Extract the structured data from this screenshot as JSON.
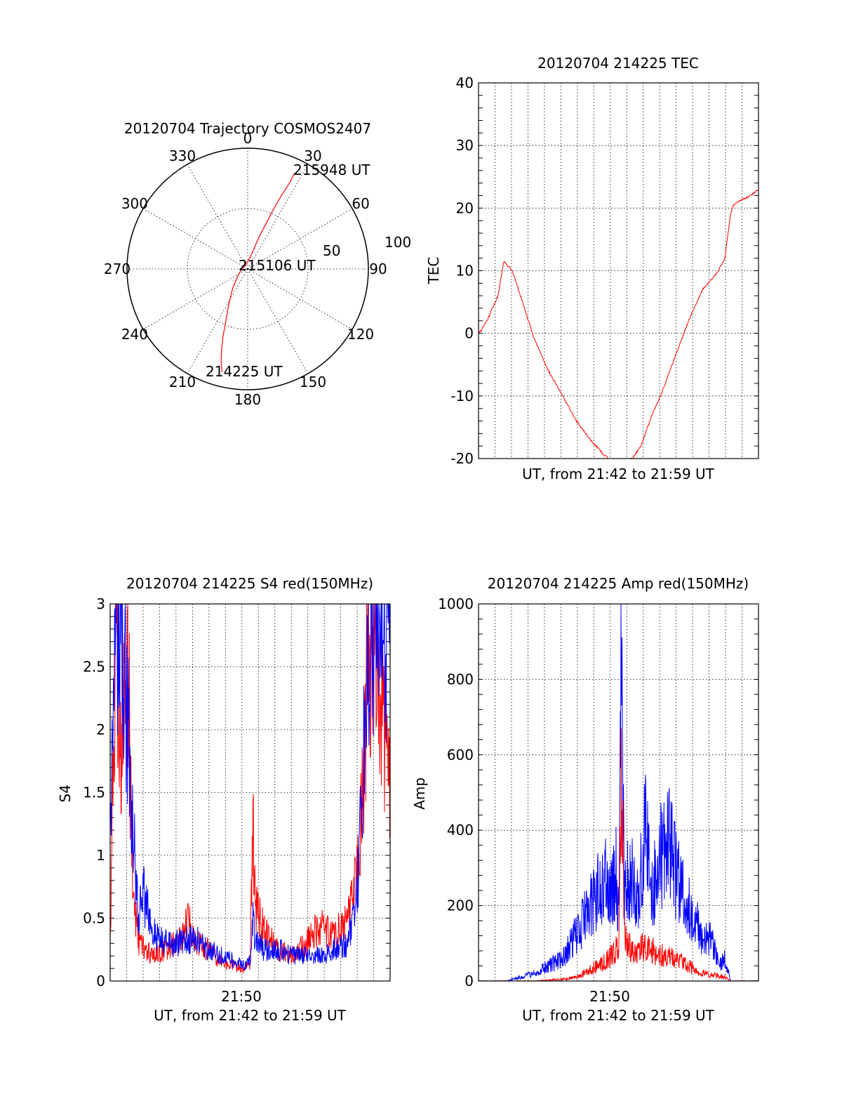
{
  "colors": {
    "red": "#ff0000",
    "blue": "#0000ff",
    "axis": "#000000",
    "background": "#ffffff"
  },
  "chart_data": [
    {
      "id": "trajectory",
      "type": "scatter",
      "subtype": "polar",
      "title": "20120704 Trajectory COSMOS2407",
      "azimuth_labels": [
        "0",
        "30",
        "60",
        "90",
        "120",
        "150",
        "180",
        "210",
        "240",
        "270",
        "300",
        "330"
      ],
      "radial_labels": [
        "50",
        "100"
      ],
      "radial_range": [
        0,
        100
      ],
      "grid": true,
      "annotations": [
        "215948 UT",
        "215106 UT",
        "214225 UT"
      ],
      "series": [
        {
          "color": "#ff0000",
          "points": [
            {
              "az": 194,
              "r": 88
            },
            {
              "az": 196,
              "r": 80
            },
            {
              "az": 198,
              "r": 70
            },
            {
              "az": 200,
              "r": 60
            },
            {
              "az": 202,
              "r": 50
            },
            {
              "az": 205,
              "r": 40
            },
            {
              "az": 210,
              "r": 30
            },
            {
              "az": 218,
              "r": 20
            },
            {
              "az": 235,
              "r": 10
            },
            {
              "az": 270,
              "r": 5
            },
            {
              "az": 340,
              "r": 4
            },
            {
              "az": 12,
              "r": 10
            },
            {
              "az": 18,
              "r": 20
            },
            {
              "az": 20,
              "r": 30
            },
            {
              "az": 22,
              "r": 40
            },
            {
              "az": 23,
              "r": 50
            },
            {
              "az": 24,
              "r": 60
            },
            {
              "az": 25,
              "r": 70
            },
            {
              "az": 26,
              "r": 80
            },
            {
              "az": 26,
              "r": 88
            }
          ]
        }
      ]
    },
    {
      "id": "tec",
      "type": "line",
      "title": "20120704 214225 TEC",
      "xlabel": "UT, from 21:42 to 21:59 UT",
      "ylabel": "TEC",
      "ylim": [
        -20,
        40
      ],
      "yticks": [
        "-20",
        "-10",
        "0",
        "10",
        "20",
        "30",
        "40"
      ],
      "xtick_labels": [],
      "grid": true,
      "series": [
        {
          "color": "#ff0000",
          "x": [
            0,
            0.01,
            0.03,
            0.05,
            0.07,
            0.09,
            0.12,
            0.15,
            0.2,
            0.25,
            0.3,
            0.35,
            0.4,
            0.45,
            0.48,
            0.5,
            0.52,
            0.55,
            0.58,
            0.62,
            0.65,
            0.7,
            0.75,
            0.8,
            0.85,
            0.88,
            0.9,
            0.91,
            0.93,
            0.95,
            0.97,
            1.0
          ],
          "y": [
            0,
            0.5,
            2,
            4,
            6,
            11.5,
            10,
            6,
            -1,
            -6,
            -10,
            -14,
            -17,
            -19.5,
            -20.5,
            -20.8,
            -20.5,
            -20,
            -18,
            -13,
            -10,
            -4,
            2,
            7,
            9.5,
            12,
            19,
            20.5,
            21,
            21.5,
            22,
            23
          ]
        }
      ]
    },
    {
      "id": "s4",
      "type": "line",
      "title": "20120704 214225 S4 red(150MHz)",
      "xlabel": "UT, from 21:42 to 21:59 UT",
      "ylabel": "S4",
      "ylim": [
        0,
        3
      ],
      "yticks": [
        "0",
        "0.5",
        "1",
        "1.5",
        "2",
        "2.5",
        "3"
      ],
      "xtick_labels": [
        "21:50"
      ],
      "grid": true,
      "series": [
        {
          "color": "#ff0000",
          "x": [
            0,
            0.02,
            0.04,
            0.06,
            0.08,
            0.1,
            0.15,
            0.2,
            0.25,
            0.28,
            0.3,
            0.35,
            0.4,
            0.45,
            0.48,
            0.5,
            0.51,
            0.52,
            0.55,
            0.6,
            0.65,
            0.7,
            0.75,
            0.8,
            0.85,
            0.88,
            0.9,
            0.92,
            0.95,
            0.98,
            1.0
          ],
          "y": [
            0.3,
            2.9,
            1.5,
            3,
            0.8,
            0.3,
            0.2,
            0.25,
            0.35,
            0.5,
            0.3,
            0.25,
            0.15,
            0.12,
            0.1,
            0.15,
            1.2,
            0.6,
            0.4,
            0.25,
            0.2,
            0.3,
            0.45,
            0.35,
            0.5,
            0.8,
            1.4,
            2.5,
            2.9,
            2.0,
            1.5
          ]
        },
        {
          "color": "#0000ff",
          "x": [
            0,
            0.02,
            0.05,
            0.08,
            0.1,
            0.12,
            0.15,
            0.2,
            0.25,
            0.3,
            0.35,
            0.4,
            0.45,
            0.48,
            0.5,
            0.51,
            0.52,
            0.55,
            0.6,
            0.65,
            0.7,
            0.75,
            0.8,
            0.85,
            0.87,
            0.89,
            0.92,
            0.95,
            0.98,
            1.0
          ],
          "y": [
            1.0,
            3,
            2.5,
            1.3,
            0.5,
            0.7,
            0.4,
            0.3,
            0.3,
            0.35,
            0.25,
            0.2,
            0.15,
            0.12,
            0.15,
            0.5,
            0.3,
            0.25,
            0.25,
            0.2,
            0.2,
            0.2,
            0.25,
            0.3,
            0.5,
            1.0,
            2.5,
            3,
            2.8,
            3
          ]
        }
      ]
    },
    {
      "id": "amp",
      "type": "line",
      "title": "20120704 214225 Amp red(150MHz)",
      "xlabel": "UT, from 21:42 to 21:59 UT",
      "ylabel": "Amp",
      "ylim": [
        0,
        1000
      ],
      "yticks": [
        "0",
        "200",
        "400",
        "600",
        "800",
        "1000"
      ],
      "xtick_labels": [
        "21:50"
      ],
      "grid": true,
      "series": [
        {
          "color": "#0000ff",
          "x": [
            0,
            0.1,
            0.15,
            0.2,
            0.25,
            0.3,
            0.33,
            0.36,
            0.4,
            0.43,
            0.45,
            0.47,
            0.49,
            0.5,
            0.51,
            0.52,
            0.55,
            0.57,
            0.6,
            0.62,
            0.65,
            0.68,
            0.7,
            0.75,
            0.78,
            0.8,
            0.83,
            0.86,
            0.88,
            0.9,
            1.0
          ],
          "y": [
            0,
            0,
            10,
            20,
            40,
            60,
            100,
            140,
            200,
            250,
            280,
            230,
            300,
            200,
            810,
            250,
            280,
            200,
            420,
            250,
            330,
            360,
            300,
            200,
            150,
            100,
            120,
            40,
            60,
            0,
            0
          ]
        },
        {
          "color": "#ff0000",
          "x": [
            0,
            0.2,
            0.3,
            0.35,
            0.4,
            0.45,
            0.48,
            0.5,
            0.51,
            0.52,
            0.55,
            0.6,
            0.65,
            0.7,
            0.75,
            0.8,
            0.85,
            0.88,
            0.9,
            1.0
          ],
          "y": [
            0,
            0,
            5,
            10,
            30,
            50,
            70,
            90,
            560,
            120,
            80,
            90,
            70,
            60,
            40,
            20,
            15,
            10,
            0,
            0
          ]
        }
      ]
    }
  ]
}
